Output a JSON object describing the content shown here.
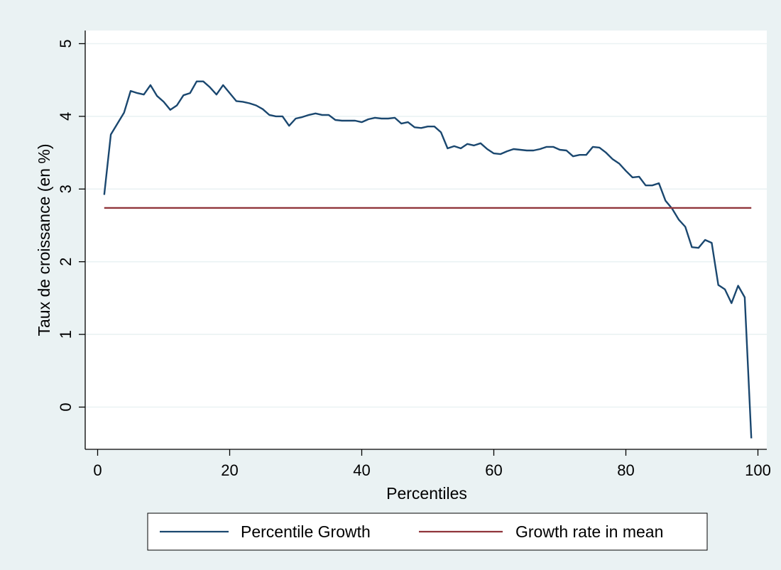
{
  "chart_data": {
    "type": "line",
    "title": "",
    "xlabel": "Percentiles",
    "ylabel": "Taux de croissance (en %)",
    "xlim": [
      0,
      100
    ],
    "ylim": [
      -0.6,
      5.2
    ],
    "xticks": [
      0,
      20,
      40,
      60,
      80,
      100
    ],
    "yticks": [
      0,
      1,
      2,
      3,
      4,
      5
    ],
    "grid": "horizontal",
    "legend": {
      "placement": "bottom",
      "entries": [
        "Percentile Growth",
        "Growth rate in mean"
      ]
    },
    "series": [
      {
        "name": "Percentile Growth",
        "color": "#1a476f",
        "x": [
          1,
          2,
          3,
          4,
          5,
          6,
          7,
          8,
          9,
          10,
          11,
          12,
          13,
          14,
          15,
          16,
          17,
          18,
          19,
          20,
          21,
          22,
          23,
          24,
          25,
          26,
          27,
          28,
          29,
          30,
          31,
          32,
          33,
          34,
          35,
          36,
          37,
          38,
          39,
          40,
          41,
          42,
          43,
          44,
          45,
          46,
          47,
          48,
          49,
          50,
          51,
          52,
          53,
          54,
          55,
          56,
          57,
          58,
          59,
          60,
          61,
          62,
          63,
          64,
          65,
          66,
          67,
          68,
          69,
          70,
          71,
          72,
          73,
          74,
          75,
          76,
          77,
          78,
          79,
          80,
          81,
          82,
          83,
          84,
          85,
          86,
          87,
          88,
          89,
          90,
          91,
          92,
          93,
          94,
          95,
          96,
          97,
          98,
          99
        ],
        "values": [
          2.92,
          3.75,
          3.9,
          4.05,
          4.35,
          4.32,
          4.3,
          4.43,
          4.28,
          4.2,
          4.09,
          4.15,
          4.29,
          4.32,
          4.48,
          4.48,
          4.4,
          4.3,
          4.43,
          4.32,
          4.21,
          4.2,
          4.18,
          4.15,
          4.1,
          4.02,
          4.0,
          4.0,
          3.87,
          3.97,
          3.99,
          4.02,
          4.04,
          4.02,
          4.02,
          3.95,
          3.94,
          3.94,
          3.94,
          3.92,
          3.96,
          3.98,
          3.97,
          3.97,
          3.98,
          3.9,
          3.92,
          3.85,
          3.84,
          3.86,
          3.86,
          3.78,
          3.56,
          3.59,
          3.56,
          3.62,
          3.6,
          3.63,
          3.55,
          3.49,
          3.48,
          3.52,
          3.55,
          3.54,
          3.53,
          3.53,
          3.55,
          3.58,
          3.58,
          3.54,
          3.53,
          3.45,
          3.47,
          3.47,
          3.58,
          3.57,
          3.5,
          3.41,
          3.35,
          3.25,
          3.16,
          3.17,
          3.05,
          3.05,
          3.08,
          2.84,
          2.73,
          2.58,
          2.48,
          2.2,
          2.19,
          2.3,
          2.26,
          1.68,
          1.62,
          1.43,
          1.67,
          1.51,
          -0.43
        ]
      },
      {
        "name": "Growth rate in mean",
        "color": "#90353b",
        "x": [
          1,
          99
        ],
        "values": [
          2.74,
          2.74
        ]
      }
    ]
  }
}
